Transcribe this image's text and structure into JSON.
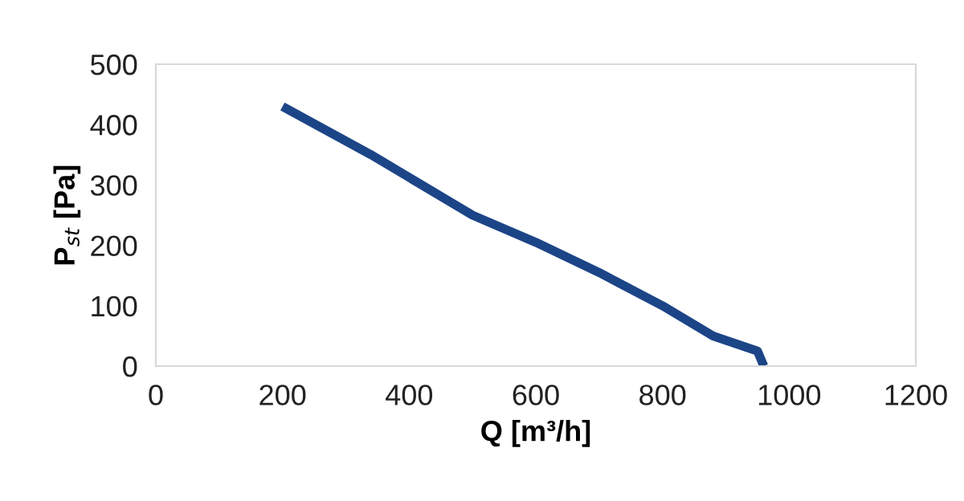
{
  "chart_data": {
    "type": "line",
    "xlabel": "Q [m³/h]",
    "ylabel": "P$_{st}$ [Pa]",
    "x": [
      200,
      340,
      500,
      600,
      700,
      800,
      880,
      950,
      960
    ],
    "series": [
      {
        "color": "#1c4587",
        "values": [
          430,
          350,
          250,
          205,
          155,
          100,
          50,
          25,
          0
        ]
      }
    ],
    "xlim": [
      0,
      1200
    ],
    "xticks": [
      0,
      200,
      400,
      600,
      800,
      1000,
      1200
    ],
    "ylim": [
      0,
      500
    ],
    "yticks": [
      0,
      100,
      200,
      300,
      400,
      500
    ],
    "grid": false,
    "marker": "none",
    "line_style": "solid"
  }
}
